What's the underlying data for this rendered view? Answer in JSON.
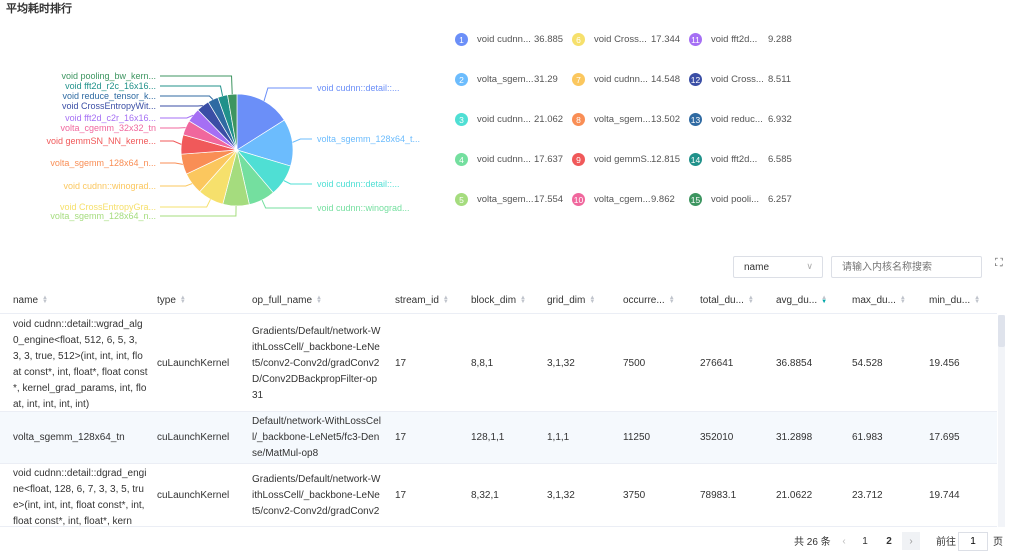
{
  "title": "平均耗时排行",
  "chart_data": {
    "type": "pie",
    "series": [
      {
        "rank": "1",
        "name": "void cudnn::detail::...",
        "legend": "void cudnn...",
        "value": 36.885,
        "color": "#6b8ff8"
      },
      {
        "rank": "2",
        "name": "volta_sgemm_128x64_t...",
        "legend": "volta_sgem...",
        "value": 31.29,
        "color": "#6cbcfd"
      },
      {
        "rank": "3",
        "name": "void cudnn::detail::...",
        "legend": "void cudnn...",
        "value": 21.062,
        "color": "#4fdfd4"
      },
      {
        "rank": "4",
        "name": "void cudnn::winograd...",
        "legend": "void cudnn...",
        "value": 17.637,
        "color": "#74df9f"
      },
      {
        "rank": "5",
        "name": "volta_sgemm_128x64_n...",
        "legend": "volta_sgem...",
        "value": 17.554,
        "color": "#a5dc7e"
      },
      {
        "rank": "6",
        "name": "void CrossEntropyGra...",
        "legend": "void Cross...",
        "value": 17.344,
        "color": "#f6e06c"
      },
      {
        "rank": "7",
        "name": "void cudnn::winograd...",
        "legend": "void cudnn...",
        "value": 14.548,
        "color": "#fbc75e"
      },
      {
        "rank": "8",
        "name": "volta_sgemm_128x64_n...",
        "legend": "volta_sgem...",
        "value": 13.502,
        "color": "#f98e55"
      },
      {
        "rank": "9",
        "name": "void gemmSN_NN_kerne...",
        "legend": "void gemmS...",
        "value": 12.815,
        "color": "#f0595a"
      },
      {
        "rank": "10",
        "name": "volta_cgemm_32x32_tn",
        "legend": "volta_cgem...",
        "value": 9.862,
        "color": "#f0679d"
      },
      {
        "rank": "11",
        "name": "void fft2d_c2r_16x16...",
        "legend": "void fft2d...",
        "value": 9.288,
        "color": "#a56ff4"
      },
      {
        "rank": "12",
        "name": "void CrossEntropyWit...",
        "legend": "void Cross...",
        "value": 8.511,
        "color": "#3a4ea5"
      },
      {
        "rank": "13",
        "name": "void reduce_tensor_k...",
        "legend": "void reduc...",
        "value": 6.932,
        "color": "#2f6aa2"
      },
      {
        "rank": "14",
        "name": "void fft2d_r2c_16x16...",
        "legend": "void fft2d...",
        "value": 6.585,
        "color": "#20918a"
      },
      {
        "rank": "15",
        "name": "void pooling_bw_kern...",
        "legend": "void pooli...",
        "value": 6.257,
        "color": "#3d9560"
      }
    ]
  },
  "filter": {
    "selected": "name",
    "placeholder": "请输入内核名称搜索"
  },
  "table": {
    "columns": [
      "name",
      "type",
      "op_full_name",
      "stream_id",
      "block_dim",
      "grid_dim",
      "occurre...",
      "total_du...",
      "avg_du...",
      "max_du...",
      "min_du..."
    ],
    "sorted_column": "avg_du...",
    "rows": [
      [
        "void cudnn::detail::wgrad_alg0_engine<float, 512, 6, 5, 3, 3, 3, true, 512>(int, int, int, float const*, int, float*, float const*, kernel_grad_params, int, float, int, int, int, int)",
        "cuLaunchKernel",
        "Gradients/Default/network-WithLossCell/_backbone-LeNet5/conv2-Conv2d/gradConv2D/Conv2DBackpropFilter-op31",
        "17",
        "8,8,1",
        "3,1,32",
        "7500",
        "276641",
        "36.8854",
        "54.528",
        "19.456"
      ],
      [
        "volta_sgemm_128x64_tn",
        "cuLaunchKernel",
        "Default/network-WithLossCell/_backbone-LeNet5/fc3-Dense/MatMul-op8",
        "17",
        "128,1,1",
        "1,1,1",
        "11250",
        "352010",
        "31.2898",
        "61.983",
        "17.695"
      ],
      [
        "void cudnn::detail::dgrad_engine<float, 128, 6, 7, 3, 3, 5, true>(int, int, int, float const*, int, float const*, int, float*, kern",
        "cuLaunchKernel",
        "Gradients/Default/network-WithLossCell/_backbone-LeNet5/conv2-Conv2d/gradConv2",
        "17",
        "8,32,1",
        "3,1,32",
        "3750",
        "78983.1",
        "21.0622",
        "23.712",
        "19.744"
      ]
    ]
  },
  "pagination": {
    "total": "共 26 条",
    "prev": "‹",
    "pages": [
      "1",
      "2"
    ],
    "current": "2",
    "next": "›",
    "goto_label": "前往",
    "goto_value": "1",
    "page_unit": "页"
  }
}
